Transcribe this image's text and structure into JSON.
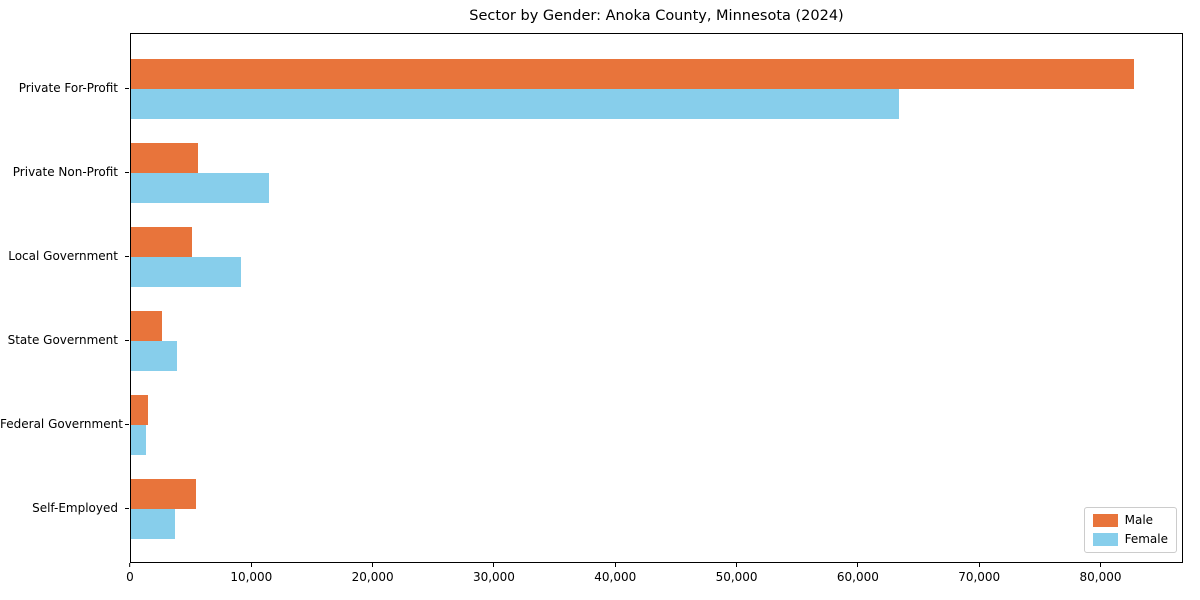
{
  "window": {
    "background": "#ffffff"
  },
  "chart_data": {
    "type": "bar",
    "orientation": "horizontal",
    "title": "Sector by Gender: Anoka County, Minnesota (2024)",
    "xlabel": "",
    "ylabel": "",
    "grid": false,
    "legend_position": "lower right",
    "categories": [
      "Private For-Profit",
      "Private Non-Profit",
      "Local Government",
      "State Government",
      "Federal Government",
      "Self-Employed"
    ],
    "series": [
      {
        "name": "Male",
        "color": "#e8743b",
        "values": [
          82800,
          5500,
          5000,
          2600,
          1400,
          5400
        ]
      },
      {
        "name": "Female",
        "color": "#87ceeb",
        "values": [
          63400,
          11400,
          9100,
          3800,
          1200,
          3600
        ]
      }
    ],
    "xlim": [
      0,
      86800
    ],
    "x_ticks": [
      {
        "value": 0,
        "label": "0"
      },
      {
        "value": 10000,
        "label": "10,000"
      },
      {
        "value": 20000,
        "label": "20,000"
      },
      {
        "value": 30000,
        "label": "30,000"
      },
      {
        "value": 40000,
        "label": "40,000"
      },
      {
        "value": 50000,
        "label": "50,000"
      },
      {
        "value": 60000,
        "label": "60,000"
      },
      {
        "value": 70000,
        "label": "70,000"
      },
      {
        "value": 80000,
        "label": "80,000"
      }
    ],
    "colors": {
      "spine": "#000000",
      "legend_border": "#cccccc",
      "text": "#000000"
    }
  }
}
